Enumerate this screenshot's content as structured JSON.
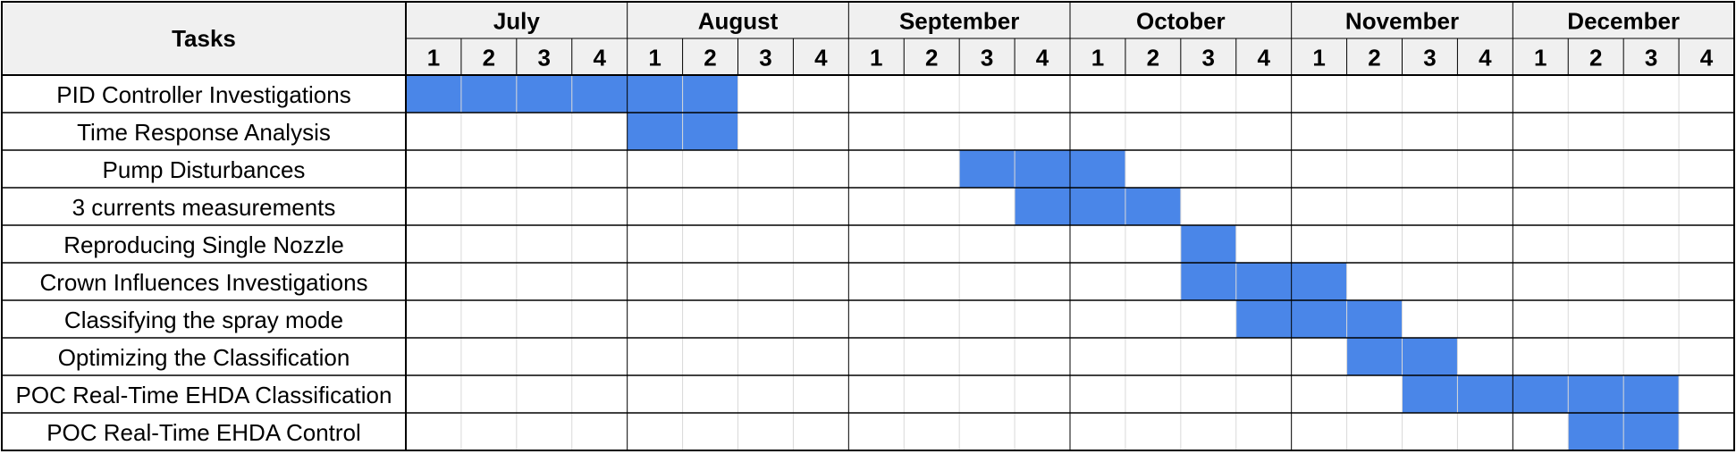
{
  "chart_data": {
    "type": "gantt",
    "header_label": "Tasks",
    "months": [
      "July",
      "August",
      "September",
      "October",
      "November",
      "December"
    ],
    "week_labels": [
      "1",
      "2",
      "3",
      "4"
    ],
    "tasks": [
      {
        "name": "PID Controller Investigations",
        "start": [
          "July",
          1
        ],
        "end": [
          "August",
          2
        ]
      },
      {
        "name": "Time Response Analysis",
        "start": [
          "August",
          1
        ],
        "end": [
          "August",
          2
        ]
      },
      {
        "name": "Pump Disturbances",
        "start": [
          "September",
          3
        ],
        "end": [
          "October",
          1
        ]
      },
      {
        "name": "3 currents measurements",
        "start": [
          "September",
          4
        ],
        "end": [
          "October",
          2
        ]
      },
      {
        "name": "Reproducing Single Nozzle",
        "start": [
          "October",
          3
        ],
        "end": [
          "October",
          3
        ]
      },
      {
        "name": "Crown Influences Investigations",
        "start": [
          "October",
          3
        ],
        "end": [
          "November",
          1
        ]
      },
      {
        "name": "Classifying the spray mode",
        "start": [
          "October",
          4
        ],
        "end": [
          "November",
          2
        ]
      },
      {
        "name": "Optimizing the Classification",
        "start": [
          "November",
          2
        ],
        "end": [
          "November",
          3
        ]
      },
      {
        "name": "POC Real-Time EHDA Classification",
        "start": [
          "November",
          3
        ],
        "end": [
          "December",
          3
        ]
      },
      {
        "name": "POC Real-Time EHDA Control",
        "start": [
          "December",
          2
        ],
        "end": [
          "December",
          3
        ]
      }
    ]
  },
  "colors": {
    "bar": "#4a86e8",
    "header_bg": "#f0f0f0",
    "grid_minor": "#d9d9d9",
    "grid_major": "#000000",
    "text": "#000000"
  }
}
